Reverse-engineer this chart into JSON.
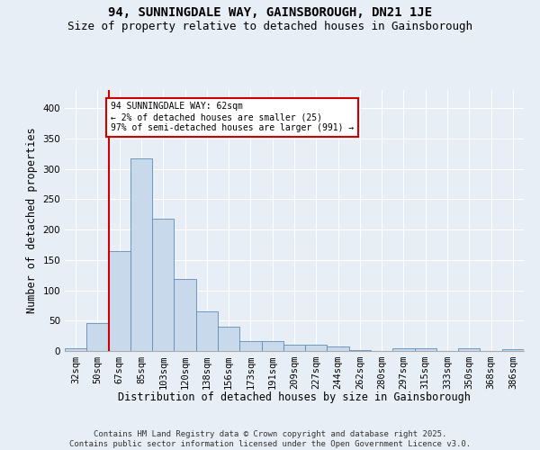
{
  "title1": "94, SUNNINGDALE WAY, GAINSBOROUGH, DN21 1JE",
  "title2": "Size of property relative to detached houses in Gainsborough",
  "xlabel": "Distribution of detached houses by size in Gainsborough",
  "ylabel": "Number of detached properties",
  "bar_labels": [
    "32sqm",
    "50sqm",
    "67sqm",
    "85sqm",
    "103sqm",
    "120sqm",
    "138sqm",
    "156sqm",
    "173sqm",
    "191sqm",
    "209sqm",
    "227sqm",
    "244sqm",
    "262sqm",
    "280sqm",
    "297sqm",
    "315sqm",
    "333sqm",
    "350sqm",
    "368sqm",
    "386sqm"
  ],
  "bar_heights": [
    5,
    46,
    165,
    318,
    218,
    119,
    65,
    40,
    17,
    17,
    10,
    10,
    8,
    2,
    0,
    4,
    4,
    0,
    5,
    0,
    3
  ],
  "bar_color": "#c9d9ec",
  "bar_edge_color": "#5b8db8",
  "vline_color": "#cc0000",
  "annotation_text": "94 SUNNINGDALE WAY: 62sqm\n← 2% of detached houses are smaller (25)\n97% of semi-detached houses are larger (991) →",
  "annotation_box_color": "#ffffff",
  "annotation_box_edge": "#cc0000",
  "ylim": [
    0,
    430
  ],
  "yticks": [
    0,
    50,
    100,
    150,
    200,
    250,
    300,
    350,
    400
  ],
  "background_color": "#e8eef5",
  "plot_bg_color": "#e8eef5",
  "footer": "Contains HM Land Registry data © Crown copyright and database right 2025.\nContains public sector information licensed under the Open Government Licence v3.0.",
  "title1_fontsize": 10,
  "title2_fontsize": 9,
  "xlabel_fontsize": 8.5,
  "ylabel_fontsize": 8.5,
  "tick_fontsize": 7.5,
  "footer_fontsize": 6.5
}
